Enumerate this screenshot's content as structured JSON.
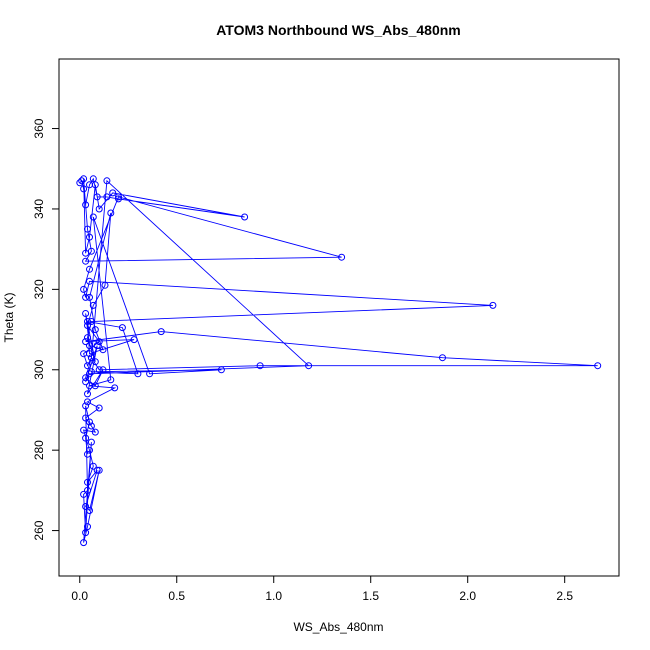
{
  "chart_data": {
    "type": "line",
    "title": "ATOM3 Northbound WS_Abs_480nm",
    "xlabel": "WS_Abs_480nm",
    "ylabel": "Theta (K)",
    "xlim": [
      -0.107,
      2.78
    ],
    "ylim": [
      248.7,
      377.3
    ],
    "x_ticks": [
      0,
      0.5,
      1,
      1.5,
      2,
      2.5
    ],
    "x_tick_labels": [
      "0.0",
      "0.5",
      "1.0",
      "1.5",
      "2.0",
      "2.5"
    ],
    "y_ticks": [
      260,
      280,
      300,
      320,
      340,
      360
    ],
    "y_tick_labels": [
      "260",
      "280",
      "300",
      "320",
      "340",
      "360"
    ],
    "grid": false,
    "series_color": "#0000ff",
    "series": [
      {
        "x": [
          0.0,
          0.01,
          0.02,
          0.03,
          0.05,
          0.07,
          0.09,
          0.14,
          0.2,
          0.85,
          0.17,
          0.1,
          0.08,
          0.05,
          0.03,
          0.02,
          0.04,
          0.06,
          0.03,
          1.35,
          0.2,
          0.05,
          0.02,
          0.03,
          0.05,
          2.13,
          0.06,
          0.04,
          0.08,
          0.03,
          0.05,
          0.12,
          0.08,
          0.05,
          0.16,
          0.13,
          0.07,
          0.04,
          0.1,
          0.02,
          0.04,
          0.06,
          0.14,
          1.18,
          0.05,
          0.03,
          0.09,
          0.04,
          0.12,
          0.08,
          0.03,
          0.06,
          0.1,
          0.93,
          2.67,
          1.87,
          0.42,
          0.03,
          0.28,
          0.05,
          0.04,
          0.22,
          0.3,
          0.06,
          0.73,
          0.36,
          0.07,
          0.16,
          0.05,
          0.18,
          0.04,
          0.1,
          0.03,
          0.06,
          0.08,
          0.02,
          0.05,
          0.07,
          0.04,
          0.09,
          0.03,
          0.05,
          0.1,
          0.04,
          0.02,
          0.06,
          0.03,
          0.02,
          0.04,
          0.03,
          0.05,
          0.03,
          0.04
        ],
        "y": [
          346.5,
          347.0,
          345.0,
          341.0,
          346.0,
          347.5,
          343.0,
          343.0,
          342.5,
          338.0,
          344.0,
          340.0,
          346.0,
          333.0,
          329.0,
          347.5,
          335.0,
          329.5,
          327.0,
          328.0,
          343.0,
          325.0,
          320.0,
          318.0,
          322.0,
          316.0,
          312.0,
          308.0,
          302.0,
          314.0,
          306.0,
          305.0,
          310.0,
          318.0,
          339.0,
          321.0,
          316.0,
          311.0,
          307.0,
          304.0,
          301.0,
          303.0,
          347.0,
          301.0,
          299.0,
          297.0,
          306.0,
          294.0,
          300.0,
          296.0,
          298.0,
          303.0,
          300.0,
          301.0,
          301.0,
          303.0,
          309.5,
          307.0,
          307.5,
          304.0,
          312.0,
          310.5,
          299.0,
          299.5,
          300.0,
          299.0,
          338.0,
          297.5,
          296.0,
          295.5,
          292.0,
          290.5,
          288.0,
          286.0,
          284.5,
          285.0,
          280.0,
          276.0,
          272.0,
          275.0,
          266.0,
          265.0,
          275.0,
          261.0,
          257.0,
          282.0,
          259.5,
          269.0,
          270.0,
          291.0,
          287.0,
          283.0,
          279.0
        ]
      }
    ]
  }
}
